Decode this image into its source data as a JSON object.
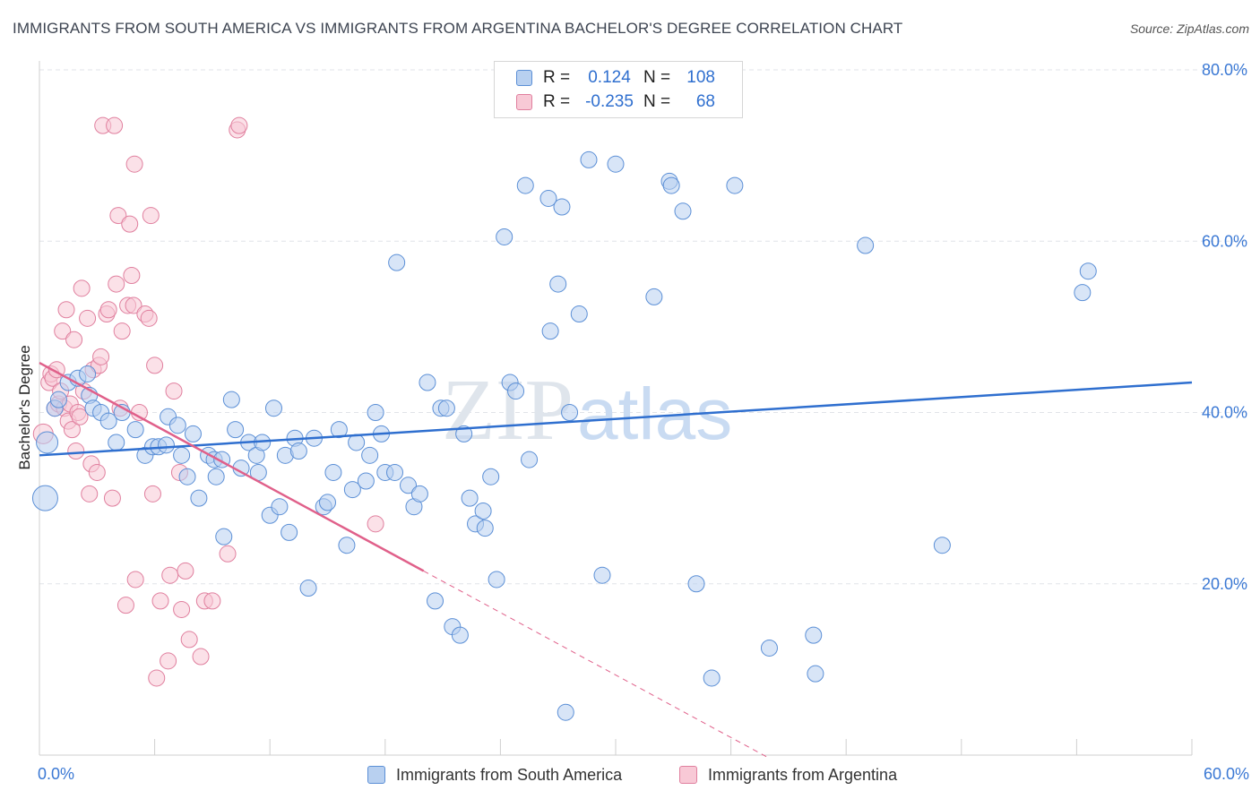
{
  "header": {
    "title": "IMMIGRANTS FROM SOUTH AMERICA VS IMMIGRANTS FROM ARGENTINA BACHELOR'S DEGREE CORRELATION CHART",
    "source": "Source: ZipAtlas.com"
  },
  "legend": {
    "r_label": "R =",
    "n_label": "N =",
    "blue": {
      "r": "0.124",
      "n": "108"
    },
    "pink": {
      "r": "-0.235",
      "n": "68"
    }
  },
  "watermark": {
    "zip": "ZIP",
    "atlas": "atlas"
  },
  "colors": {
    "blue_fill": "#b8d0f0",
    "blue_stroke": "#5b8fd6",
    "blue_line": "#2f6fcf",
    "pink_fill": "#f8c9d6",
    "pink_stroke": "#e07f9e",
    "pink_line": "#e0608a",
    "tick_label": "#3a78d4"
  },
  "chart_data": {
    "type": "scatter",
    "title": "IMMIGRANTS FROM SOUTH AMERICA VS IMMIGRANTS FROM ARGENTINA BACHELOR'S DEGREE CORRELATION CHART",
    "xlabel": "",
    "ylabel": "Bachelor's Degree",
    "xlim": [
      0,
      60
    ],
    "ylim": [
      0,
      80
    ],
    "x_tick_labels": [
      "0.0%",
      "60.0%"
    ],
    "y_ticks": [
      20,
      40,
      60,
      80
    ],
    "y_tick_labels": [
      "20.0%",
      "40.0%",
      "60.0%",
      "80.0%"
    ],
    "grid": true,
    "legend_position": "bottom",
    "series": [
      {
        "name": "Immigrants from South America",
        "r": 0.124,
        "n": 108,
        "trend": {
          "x0": 0,
          "y0": 35.0,
          "x1": 60,
          "y1": 43.5,
          "dashed_after": null
        },
        "points": [
          [
            0.3,
            30.0,
            14
          ],
          [
            0.4,
            36.5,
            12
          ],
          [
            0.8,
            40.5,
            9
          ],
          [
            1.0,
            41.5,
            9
          ],
          [
            1.5,
            43.5,
            9
          ],
          [
            2.0,
            44.0,
            9
          ],
          [
            2.5,
            44.5,
            9
          ],
          [
            2.6,
            42.0,
            9
          ],
          [
            2.8,
            40.5,
            9
          ],
          [
            3.2,
            40.0,
            9
          ],
          [
            3.6,
            39.0,
            9
          ],
          [
            4.0,
            36.5,
            9
          ],
          [
            4.3,
            40.0,
            9
          ],
          [
            5.0,
            38.0,
            9
          ],
          [
            5.5,
            35.0,
            9
          ],
          [
            5.9,
            36.0,
            9
          ],
          [
            6.2,
            36.0,
            9
          ],
          [
            6.6,
            36.2,
            9
          ],
          [
            6.7,
            39.5,
            9
          ],
          [
            7.2,
            38.5,
            9
          ],
          [
            7.4,
            35.0,
            9
          ],
          [
            7.7,
            32.5,
            9
          ],
          [
            8.0,
            37.5,
            9
          ],
          [
            8.3,
            30.0,
            9
          ],
          [
            8.8,
            35.0,
            9
          ],
          [
            9.1,
            34.5,
            9
          ],
          [
            9.2,
            32.5,
            9
          ],
          [
            9.5,
            34.5,
            9
          ],
          [
            9.6,
            25.5,
            9
          ],
          [
            10.0,
            41.5,
            9
          ],
          [
            10.2,
            38.0,
            9
          ],
          [
            10.5,
            33.5,
            9
          ],
          [
            10.9,
            36.5,
            9
          ],
          [
            11.3,
            35.0,
            9
          ],
          [
            11.4,
            33.0,
            9
          ],
          [
            11.6,
            36.5,
            9
          ],
          [
            12.0,
            28.0,
            9
          ],
          [
            12.2,
            40.5,
            9
          ],
          [
            12.5,
            29.0,
            9
          ],
          [
            12.8,
            35.0,
            9
          ],
          [
            13.0,
            26.0,
            9
          ],
          [
            13.3,
            37.0,
            9
          ],
          [
            13.5,
            35.5,
            9
          ],
          [
            14.0,
            19.5,
            9
          ],
          [
            14.3,
            37.0,
            9
          ],
          [
            14.8,
            29.0,
            9
          ],
          [
            15.0,
            29.5,
            9
          ],
          [
            15.3,
            33.0,
            9
          ],
          [
            15.6,
            38.0,
            9
          ],
          [
            16.0,
            24.5,
            9
          ],
          [
            16.3,
            31.0,
            9
          ],
          [
            16.5,
            36.5,
            9
          ],
          [
            17.0,
            32.0,
            9
          ],
          [
            17.2,
            35.0,
            9
          ],
          [
            17.5,
            40.0,
            9
          ],
          [
            17.8,
            37.5,
            9
          ],
          [
            18.0,
            33.0,
            9
          ],
          [
            18.5,
            33.0,
            9
          ],
          [
            18.6,
            57.5,
            9
          ],
          [
            19.2,
            31.5,
            9
          ],
          [
            19.5,
            29.0,
            9
          ],
          [
            19.8,
            30.5,
            9
          ],
          [
            20.2,
            43.5,
            9
          ],
          [
            20.6,
            18.0,
            9
          ],
          [
            20.9,
            40.5,
            9
          ],
          [
            21.2,
            40.5,
            9
          ],
          [
            21.5,
            15.0,
            9
          ],
          [
            21.9,
            14.0,
            9
          ],
          [
            22.1,
            37.5,
            9
          ],
          [
            22.4,
            30.0,
            9
          ],
          [
            22.7,
            27.0,
            9
          ],
          [
            23.1,
            28.5,
            9
          ],
          [
            23.2,
            26.5,
            9
          ],
          [
            23.5,
            32.5,
            9
          ],
          [
            23.8,
            20.5,
            9
          ],
          [
            24.2,
            60.5,
            9
          ],
          [
            24.5,
            43.5,
            9
          ],
          [
            24.8,
            42.5,
            9
          ],
          [
            25.3,
            66.5,
            9
          ],
          [
            25.5,
            34.5,
            9
          ],
          [
            26.5,
            65.0,
            9
          ],
          [
            26.6,
            49.5,
            9
          ],
          [
            27.0,
            55.0,
            9
          ],
          [
            27.2,
            64.0,
            9
          ],
          [
            27.4,
            5.0,
            9
          ],
          [
            27.6,
            40.0,
            9
          ],
          [
            28.1,
            51.5,
            9
          ],
          [
            28.6,
            69.5,
            9
          ],
          [
            29.3,
            21.0,
            9
          ],
          [
            30.0,
            69.0,
            9
          ],
          [
            32.0,
            53.5,
            9
          ],
          [
            32.8,
            67.0,
            9
          ],
          [
            32.9,
            66.5,
            9
          ],
          [
            33.5,
            63.5,
            9
          ],
          [
            34.2,
            20.0,
            9
          ],
          [
            35.0,
            9.0,
            9
          ],
          [
            36.2,
            66.5,
            9
          ],
          [
            38.0,
            12.5,
            9
          ],
          [
            40.3,
            14.0,
            9
          ],
          [
            40.4,
            9.5,
            9
          ],
          [
            43.0,
            59.5,
            9
          ],
          [
            47.0,
            24.5,
            9
          ],
          [
            54.3,
            54.0,
            9
          ],
          [
            54.6,
            56.5,
            9
          ]
        ]
      },
      {
        "name": "Immigrants from Argentina",
        "r": -0.235,
        "n": 68,
        "trend": {
          "x0": 0,
          "y0": 45.8,
          "x1": 20,
          "y1": 21.5,
          "dashed_after": 20,
          "dashed_end_x": 38
        },
        "points": [
          [
            0.2,
            37.5,
            11
          ],
          [
            0.5,
            43.5,
            9
          ],
          [
            0.6,
            44.5,
            9
          ],
          [
            0.7,
            44.0,
            9
          ],
          [
            0.8,
            40.5,
            9
          ],
          [
            0.9,
            45.0,
            9
          ],
          [
            1.0,
            41.0,
            9
          ],
          [
            1.1,
            42.5,
            9
          ],
          [
            1.2,
            49.5,
            9
          ],
          [
            1.3,
            40.5,
            9
          ],
          [
            1.4,
            52.0,
            9
          ],
          [
            1.5,
            39.0,
            9
          ],
          [
            1.6,
            41.0,
            9
          ],
          [
            1.7,
            38.0,
            9
          ],
          [
            1.8,
            48.5,
            9
          ],
          [
            1.9,
            35.5,
            9
          ],
          [
            2.0,
            40.0,
            9
          ],
          [
            2.1,
            39.5,
            9
          ],
          [
            2.2,
            54.5,
            9
          ],
          [
            2.3,
            42.5,
            9
          ],
          [
            2.5,
            51.0,
            9
          ],
          [
            2.6,
            30.5,
            9
          ],
          [
            2.7,
            34.0,
            9
          ],
          [
            2.8,
            45.0,
            9
          ],
          [
            3.0,
            33.0,
            9
          ],
          [
            3.1,
            45.5,
            9
          ],
          [
            3.2,
            46.5,
            9
          ],
          [
            3.3,
            73.5,
            9
          ],
          [
            3.5,
            51.5,
            9
          ],
          [
            3.6,
            52.0,
            9
          ],
          [
            3.8,
            30.0,
            9
          ],
          [
            3.9,
            73.5,
            9
          ],
          [
            4.0,
            55.0,
            9
          ],
          [
            4.1,
            63.0,
            9
          ],
          [
            4.2,
            40.5,
            9
          ],
          [
            4.3,
            49.5,
            9
          ],
          [
            4.5,
            17.5,
            9
          ],
          [
            4.6,
            52.5,
            9
          ],
          [
            4.7,
            62.0,
            9
          ],
          [
            4.8,
            56.0,
            9
          ],
          [
            4.9,
            52.5,
            9
          ],
          [
            4.95,
            69.0,
            9
          ],
          [
            5.0,
            20.5,
            9
          ],
          [
            5.2,
            40.0,
            9
          ],
          [
            5.5,
            51.5,
            9
          ],
          [
            5.7,
            51.0,
            9
          ],
          [
            5.8,
            63.0,
            9
          ],
          [
            5.9,
            30.5,
            9
          ],
          [
            6.0,
            45.5,
            9
          ],
          [
            6.1,
            9.0,
            9
          ],
          [
            6.3,
            18.0,
            9
          ],
          [
            6.7,
            11.0,
            9
          ],
          [
            6.8,
            21.0,
            9
          ],
          [
            7.0,
            42.5,
            9
          ],
          [
            7.3,
            33.0,
            9
          ],
          [
            7.4,
            17.0,
            9
          ],
          [
            7.6,
            21.5,
            9
          ],
          [
            7.8,
            13.5,
            9
          ],
          [
            8.4,
            11.5,
            9
          ],
          [
            8.6,
            18.0,
            9
          ],
          [
            9.0,
            18.0,
            9
          ],
          [
            9.8,
            23.5,
            9
          ],
          [
            10.3,
            73.0,
            9
          ],
          [
            10.4,
            73.5,
            9
          ],
          [
            17.5,
            27.0,
            9
          ]
        ]
      }
    ]
  },
  "bottom_legend": {
    "blue_label": "Immigrants from South America",
    "pink_label": "Immigrants from Argentina"
  }
}
